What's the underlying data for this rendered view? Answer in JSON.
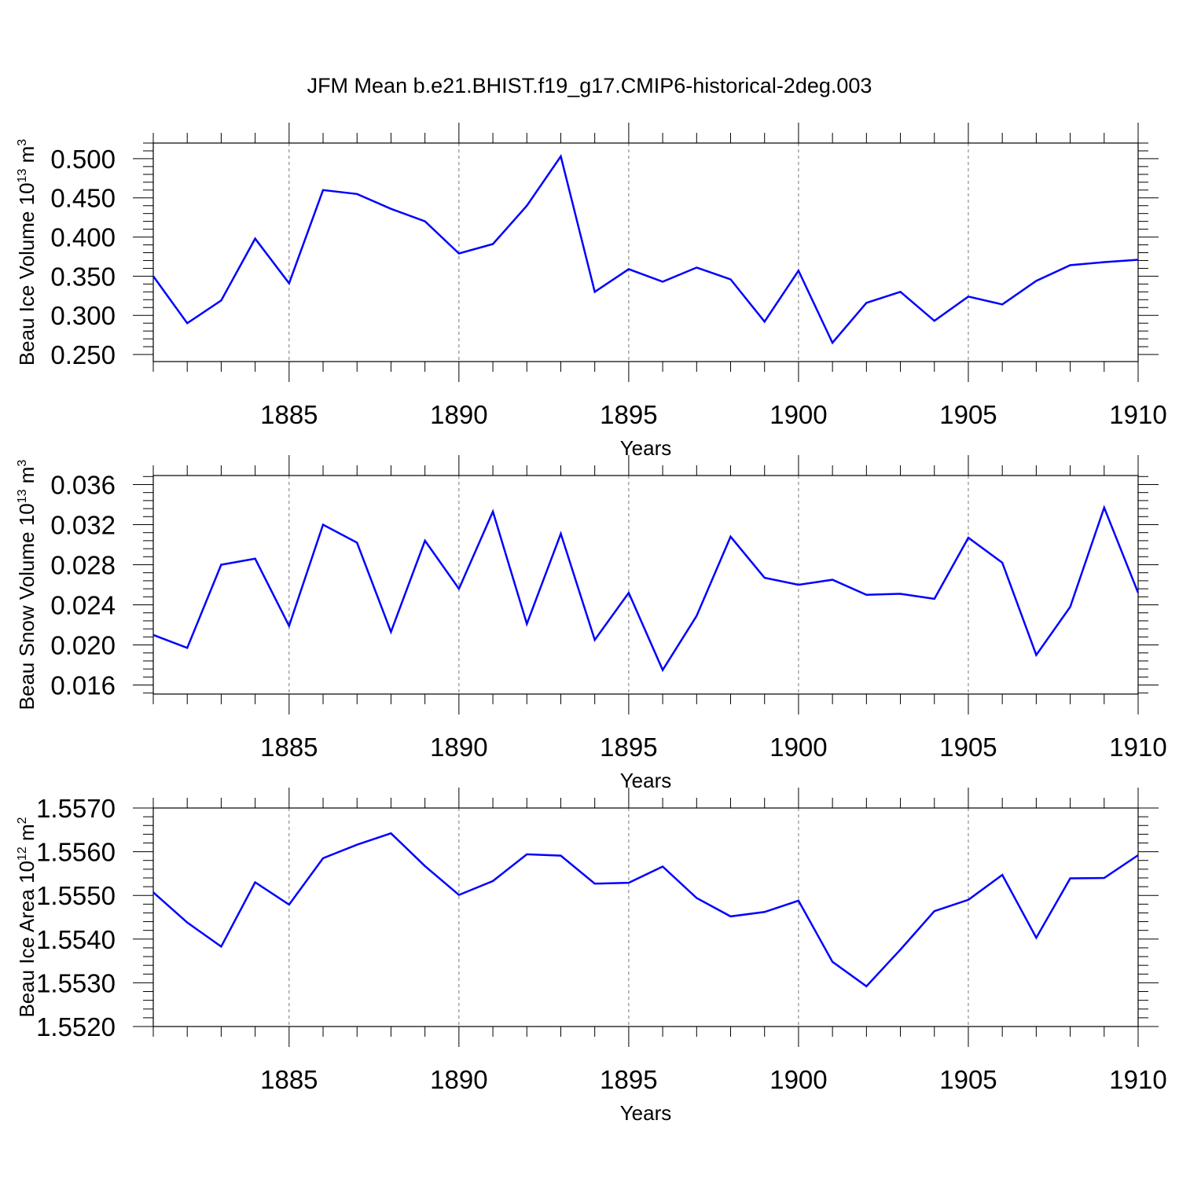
{
  "figure_title": "JFM Mean b.e21.BHIST.f19_g17.CMIP6-historical-2deg.003",
  "colors": {
    "line": "#0000ff",
    "axis": "#000000",
    "grid": "#777777"
  },
  "chart_data": [
    {
      "type": "line",
      "title": "JFM Mean b.e21.BHIST.f19_g17.CMIP6-historical-2deg.003",
      "ylabel_main": "Beau Ice Volume 10",
      "ylabel_exp": "13",
      "ylabel_unit": "m",
      "ylabel_unit_exp": "3",
      "xlabel": "Years",
      "xlim": [
        1881,
        1910
      ],
      "ylim": [
        0.241,
        0.52
      ],
      "yticks": [
        0.25,
        0.3,
        0.35,
        0.4,
        0.45,
        0.5
      ],
      "ytick_labels": [
        "0.250",
        "0.300",
        "0.350",
        "0.400",
        "0.450",
        "0.500"
      ],
      "xticks": [
        1885,
        1890,
        1895,
        1900,
        1905,
        1910
      ],
      "xtick_labels": [
        "1885",
        "1890",
        "1895",
        "1900",
        "1905",
        "1910"
      ],
      "grid": "vertical dashed at major x ticks",
      "x": [
        1881,
        1882,
        1883,
        1884,
        1885,
        1886,
        1887,
        1888,
        1889,
        1890,
        1891,
        1892,
        1893,
        1894,
        1895,
        1896,
        1897,
        1898,
        1899,
        1900,
        1901,
        1902,
        1903,
        1904,
        1905,
        1906,
        1907,
        1908,
        1909,
        1910
      ],
      "values": [
        0.35,
        0.29,
        0.319,
        0.398,
        0.341,
        0.46,
        0.455,
        0.436,
        0.42,
        0.379,
        0.391,
        0.44,
        0.503,
        0.33,
        0.359,
        0.343,
        0.361,
        0.346,
        0.292,
        0.357,
        0.265,
        0.316,
        0.33,
        0.293,
        0.324,
        0.314,
        0.344,
        0.364,
        0.368,
        0.371
      ]
    },
    {
      "type": "line",
      "ylabel_main": "Beau Snow Volume 10",
      "ylabel_exp": "13",
      "ylabel_unit": "m",
      "ylabel_unit_exp": "3",
      "xlabel": "Years",
      "xlim": [
        1881,
        1910
      ],
      "ylim": [
        0.0151,
        0.0369
      ],
      "yticks": [
        0.016,
        0.02,
        0.024,
        0.028,
        0.032,
        0.036
      ],
      "ytick_labels": [
        "0.016",
        "0.020",
        "0.024",
        "0.028",
        "0.032",
        "0.036"
      ],
      "xticks": [
        1885,
        1890,
        1895,
        1900,
        1905,
        1910
      ],
      "xtick_labels": [
        "1885",
        "1890",
        "1895",
        "1900",
        "1905",
        "1910"
      ],
      "grid": "vertical dashed at major x ticks",
      "x": [
        1881,
        1882,
        1883,
        1884,
        1885,
        1886,
        1887,
        1888,
        1889,
        1890,
        1891,
        1892,
        1893,
        1894,
        1895,
        1896,
        1897,
        1898,
        1899,
        1900,
        1901,
        1902,
        1903,
        1904,
        1905,
        1906,
        1907,
        1908,
        1909,
        1910
      ],
      "values": [
        0.021,
        0.0197,
        0.028,
        0.0286,
        0.0219,
        0.032,
        0.0302,
        0.0213,
        0.0304,
        0.0256,
        0.0333,
        0.0221,
        0.0311,
        0.0205,
        0.0252,
        0.0175,
        0.0229,
        0.0308,
        0.0267,
        0.026,
        0.0265,
        0.025,
        0.0251,
        0.0246,
        0.0307,
        0.0282,
        0.019,
        0.0238,
        0.0337,
        0.0252
      ]
    },
    {
      "type": "line",
      "ylabel_main": "Beau Ice Area 10",
      "ylabel_exp": "12",
      "ylabel_unit": "m",
      "ylabel_unit_exp": "2",
      "xlabel": "Years",
      "xlim": [
        1881,
        1910
      ],
      "ylim": [
        1.552,
        1.557
      ],
      "yticks": [
        1.552,
        1.553,
        1.554,
        1.555,
        1.556,
        1.557
      ],
      "ytick_labels": [
        "1.5520",
        "1.5530",
        "1.5540",
        "1.5550",
        "1.5560",
        "1.5570"
      ],
      "xticks": [
        1885,
        1890,
        1895,
        1900,
        1905,
        1910
      ],
      "xtick_labels": [
        "1885",
        "1890",
        "1895",
        "1900",
        "1905",
        "1910"
      ],
      "grid": "vertical dashed at major x ticks",
      "x": [
        1881,
        1882,
        1883,
        1884,
        1885,
        1886,
        1887,
        1888,
        1889,
        1890,
        1891,
        1892,
        1893,
        1894,
        1895,
        1896,
        1897,
        1898,
        1899,
        1900,
        1901,
        1902,
        1903,
        1904,
        1905,
        1906,
        1907,
        1908,
        1909,
        1910
      ],
      "values": [
        1.55507,
        1.55438,
        1.55383,
        1.5553,
        1.55479,
        1.55585,
        1.55616,
        1.55642,
        1.55567,
        1.55501,
        1.55533,
        1.55594,
        1.55591,
        1.55527,
        1.55529,
        1.55566,
        1.55494,
        1.55452,
        1.55462,
        1.55488,
        1.55348,
        1.55292,
        1.55376,
        1.55464,
        1.5549,
        1.55547,
        1.55403,
        1.55539,
        1.5554,
        1.55592
      ]
    }
  ]
}
